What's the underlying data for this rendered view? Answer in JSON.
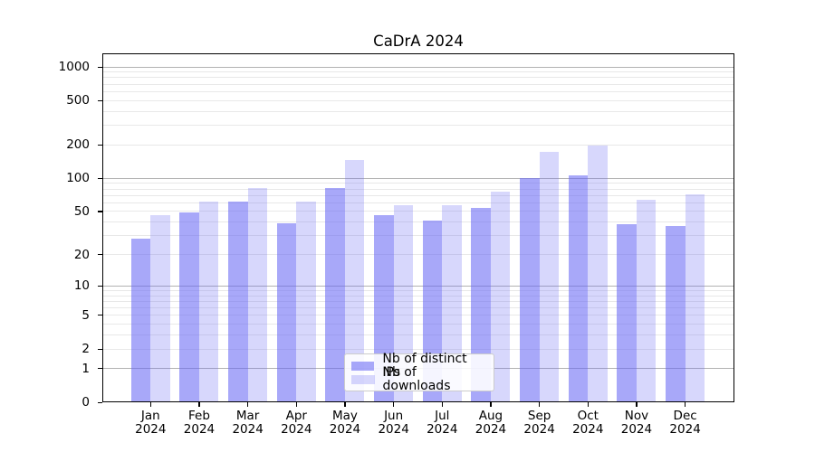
{
  "chart_data": {
    "type": "bar",
    "title": "CaDrA 2024",
    "yscale": "log1p",
    "ylim": [
      0,
      1323
    ],
    "yticks": [
      0,
      1,
      2,
      5,
      10,
      20,
      50,
      100,
      200,
      500,
      1000
    ],
    "grid": "horizontal, minor light lines at 2-9 per decade, major lines at powers of 10",
    "legend_position": "lower center",
    "categories": [
      "Jan 2024",
      "Feb 2024",
      "Mar 2024",
      "Apr 2024",
      "May 2024",
      "Jun 2024",
      "Jul 2024",
      "Aug 2024",
      "Sep 2024",
      "Oct 2024",
      "Nov 2024",
      "Dec 2024"
    ],
    "series": [
      {
        "name": "Nb of distinct IPs",
        "color": "rgba(102,102,245,0.57)",
        "values": [
          28,
          49,
          62,
          39,
          82,
          46,
          41,
          54,
          101,
          106,
          38,
          37
        ]
      },
      {
        "name": "Nb of downloads",
        "color": "rgba(102,102,245,0.26)",
        "values": [
          46,
          61,
          81,
          61,
          146,
          57,
          57,
          76,
          172,
          198,
          64,
          71
        ]
      }
    ]
  },
  "colors": {
    "grid_major": "#b2b2b2",
    "grid_minor": "#e8e8e8",
    "axis": "#000000",
    "legend_border": "#cccccc",
    "legend_bg": "rgba(255,255,255,0.88)"
  }
}
